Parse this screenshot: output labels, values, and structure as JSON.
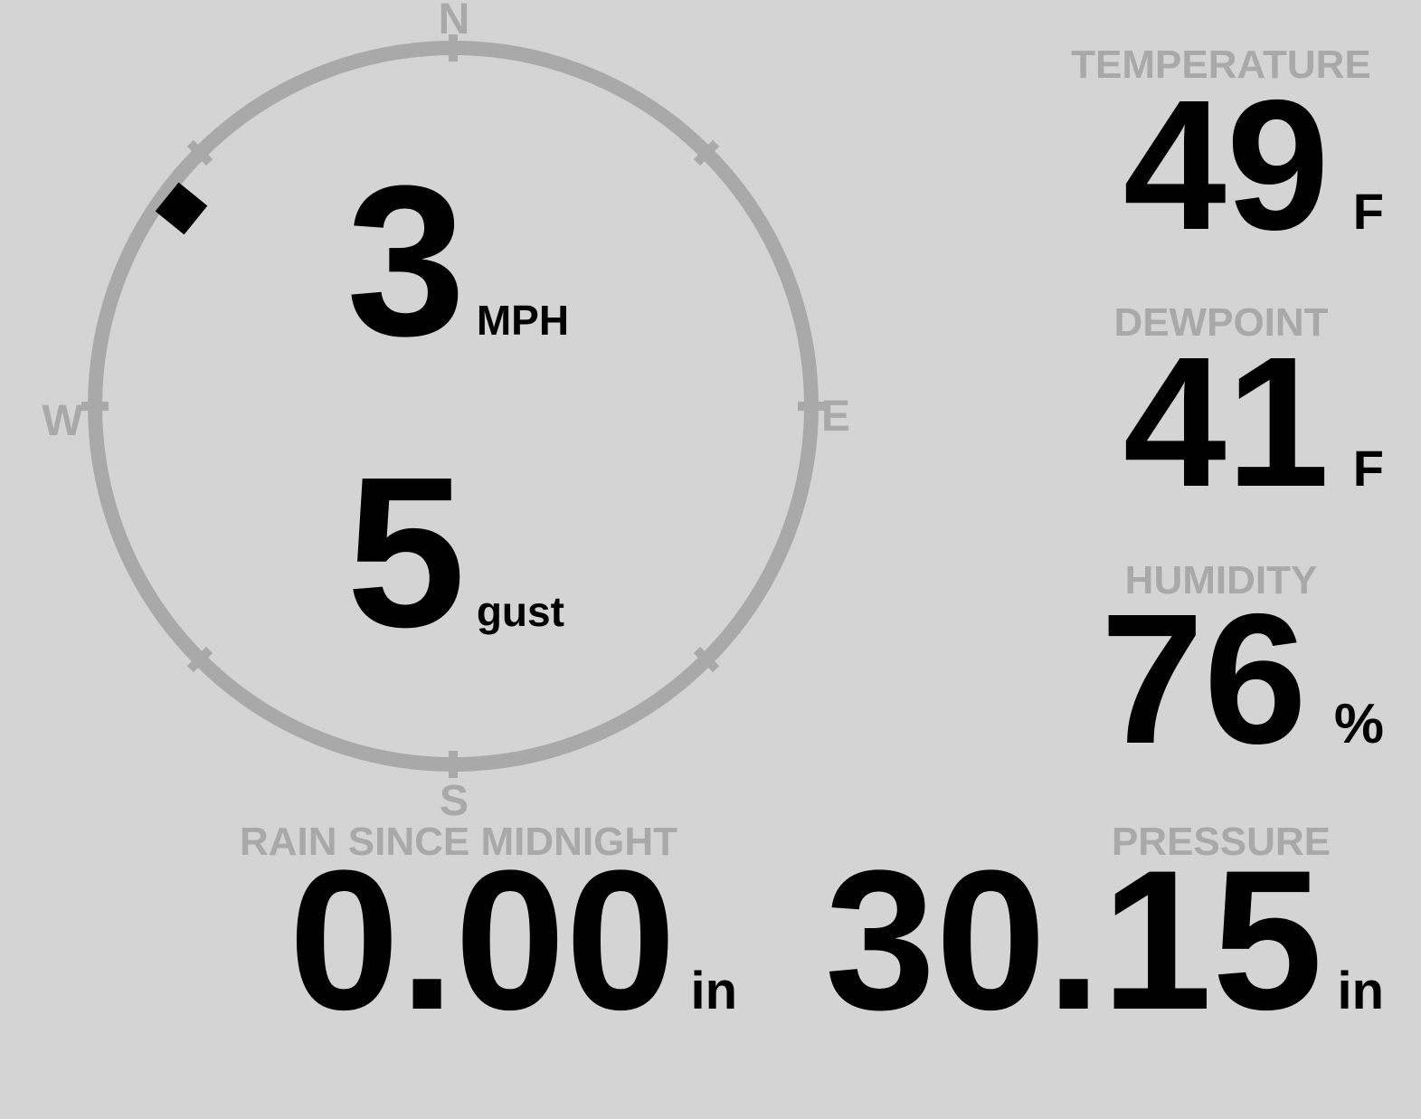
{
  "colors": {
    "background": "#d4d4d4",
    "dial_gray": "#a9a9a9",
    "value_black": "#000000"
  },
  "wind": {
    "speed": "3",
    "speed_unit": "MPH",
    "gust": "5",
    "gust_unit": "gust",
    "direction_bearing_deg": 306,
    "compass": {
      "north": "N",
      "east": "E",
      "south": "S",
      "west": "W"
    }
  },
  "metrics": {
    "temperature": {
      "label": "TEMPERATURE",
      "value": "49",
      "unit": "F"
    },
    "dewpoint": {
      "label": "DEWPOINT",
      "value": "41",
      "unit": "F"
    },
    "humidity": {
      "label": "HUMIDITY",
      "value": "76",
      "unit": "%"
    },
    "rain": {
      "label": "RAIN SINCE MIDNIGHT",
      "value": "0.00",
      "unit": "in"
    },
    "pressure": {
      "label": "PRESSURE",
      "value": "30.15",
      "unit": "in"
    }
  }
}
